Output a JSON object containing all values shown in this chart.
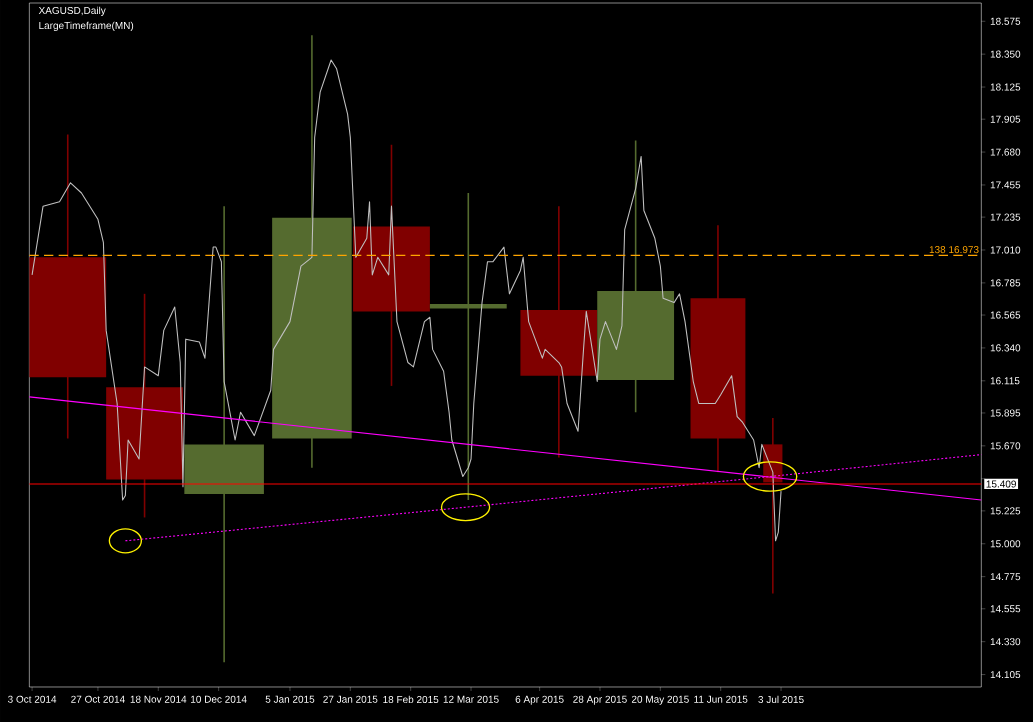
{
  "chart_data": {
    "type": "candlestick",
    "title": "XAGUSD,Daily",
    "subtitle": "LargeTimeframe(MN)",
    "xlim": [
      "2014-10-02",
      "2015-09-14"
    ],
    "ylim": [
      14.02,
      18.7
    ],
    "xticks": [
      {
        "value": "2014-10-03",
        "label": "3 Oct 2014"
      },
      {
        "value": "2014-10-27",
        "label": "27 Oct 2014"
      },
      {
        "value": "2014-11-18",
        "label": "18 Nov 2014"
      },
      {
        "value": "2014-12-10",
        "label": "10 Dec 2014"
      },
      {
        "value": "2015-01-05",
        "label": "5 Jan 2015"
      },
      {
        "value": "2015-01-27",
        "label": "27 Jan 2015"
      },
      {
        "value": "2015-02-18",
        "label": "18 Feb 2015"
      },
      {
        "value": "2015-03-12",
        "label": "12 Mar 2015"
      },
      {
        "value": "2015-04-06",
        "label": "6 Apr 2015"
      },
      {
        "value": "2015-04-28",
        "label": "28 Apr 2015"
      },
      {
        "value": "2015-05-20",
        "label": "20 May 2015"
      },
      {
        "value": "2015-06-11",
        "label": "11 Jun 2015"
      },
      {
        "value": "2015-07-03",
        "label": "3 Jul 2015"
      }
    ],
    "yticks": [
      {
        "value": 14.105,
        "label": "14.105"
      },
      {
        "value": 14.33,
        "label": "14.330"
      },
      {
        "value": 14.555,
        "label": "14.555"
      },
      {
        "value": 14.775,
        "label": "14.775"
      },
      {
        "value": 15.0,
        "label": "15.000"
      },
      {
        "value": 15.225,
        "label": "15.225"
      },
      {
        "value": 15.445,
        "label": null
      },
      {
        "value": 15.67,
        "label": "15.670"
      },
      {
        "value": 15.895,
        "label": "15.895"
      },
      {
        "value": 16.115,
        "label": "16.115"
      },
      {
        "value": 16.34,
        "label": "16.340"
      },
      {
        "value": 16.565,
        "label": "16.565"
      },
      {
        "value": 16.785,
        "label": "16.785"
      },
      {
        "value": 17.01,
        "label": "17.010"
      },
      {
        "value": 17.235,
        "label": "17.235"
      },
      {
        "value": 17.455,
        "label": "17.455"
      },
      {
        "value": 17.68,
        "label": "17.680"
      },
      {
        "value": 17.905,
        "label": "17.905"
      },
      {
        "value": 18.125,
        "label": "18.125"
      },
      {
        "value": 18.35,
        "label": "18.350"
      },
      {
        "value": 18.575,
        "label": "18.575"
      }
    ],
    "ref_lines": [
      {
        "axis": "y",
        "value": 16.973,
        "label": "138  16.973",
        "color": "#ffa500",
        "line_style": "dashed"
      },
      {
        "axis": "y",
        "value": 15.409,
        "label": "15.409",
        "color": "#ff0000",
        "line_style": "solid"
      }
    ],
    "series": [
      {
        "type": "candlestick",
        "x": [
          "2014-10-16",
          "2014-11-13",
          "2014-12-12",
          "2015-01-13",
          "2015-02-11",
          "2015-03-11",
          "2015-04-13",
          "2015-05-11",
          "2015-06-10",
          "2015-06-30"
        ],
        "ohlc": [
          [
            16.96,
            17.8,
            15.72,
            16.14
          ],
          [
            16.07,
            16.71,
            15.18,
            15.44
          ],
          [
            15.34,
            17.31,
            14.19,
            15.68
          ],
          [
            15.72,
            18.48,
            15.52,
            17.23
          ],
          [
            17.17,
            17.73,
            16.08,
            16.59
          ],
          [
            16.61,
            17.4,
            15.3,
            16.64
          ],
          [
            16.6,
            17.31,
            15.59,
            16.15
          ],
          [
            16.12,
            17.76,
            15.9,
            16.73
          ],
          [
            16.68,
            17.18,
            15.49,
            15.72
          ],
          [
            15.68,
            15.86,
            14.66,
            15.42
          ]
        ],
        "colors": [
          "#800000",
          "#800000",
          "#556b2f",
          "#556b2f",
          "#800000",
          "#556b2f",
          "#800000",
          "#556b2f",
          "#800000",
          "#800000"
        ]
      },
      {
        "type": "line",
        "color": "#c0c0c0",
        "x": [
          "2014-10-03",
          "2014-10-07",
          "2014-10-13",
          "2014-10-17",
          "2014-10-21",
          "2014-10-27",
          "2014-10-29",
          "2014-10-30",
          "2014-11-03",
          "2014-11-05",
          "2014-11-06",
          "2014-11-07",
          "2014-11-11",
          "2014-11-13",
          "2014-11-18",
          "2014-11-20",
          "2014-11-24",
          "2014-11-26",
          "2014-11-27",
          "2014-11-28",
          "2014-12-03",
          "2014-12-05",
          "2014-12-08",
          "2014-12-09",
          "2014-12-11",
          "2014-12-12",
          "2014-12-16",
          "2014-12-18",
          "2014-12-23",
          "2014-12-29",
          "2014-12-30",
          "2015-01-05",
          "2015-01-09",
          "2015-01-13",
          "2015-01-14",
          "2015-01-16",
          "2015-01-20",
          "2015-01-22",
          "2015-01-26",
          "2015-01-27",
          "2015-01-29",
          "2015-02-02",
          "2015-02-03",
          "2015-02-04",
          "2015-02-06",
          "2015-02-10",
          "2015-02-11",
          "2015-02-13",
          "2015-02-17",
          "2015-02-19",
          "2015-02-23",
          "2015-02-25",
          "2015-02-26",
          "2015-03-02",
          "2015-03-04",
          "2015-03-05",
          "2015-03-09",
          "2015-03-11",
          "2015-03-12",
          "2015-03-13",
          "2015-03-16",
          "2015-03-18",
          "2015-03-20",
          "2015-03-24",
          "2015-03-26",
          "2015-03-30",
          "2015-03-31",
          "2015-04-02",
          "2015-04-07",
          "2015-04-08",
          "2015-04-13",
          "2015-04-14",
          "2015-04-16",
          "2015-04-20",
          "2015-04-22",
          "2015-04-23",
          "2015-04-27",
          "2015-04-28",
          "2015-04-30",
          "2015-05-04",
          "2015-05-06",
          "2015-05-07",
          "2015-05-11",
          "2015-05-13",
          "2015-05-14",
          "2015-05-18",
          "2015-05-20",
          "2015-05-21",
          "2015-05-25",
          "2015-05-27",
          "2015-05-29",
          "2015-06-01",
          "2015-06-03",
          "2015-06-05",
          "2015-06-09",
          "2015-06-11",
          "2015-06-15",
          "2015-06-17",
          "2015-06-19",
          "2015-06-23",
          "2015-06-25",
          "2015-06-26",
          "2015-06-30",
          "2015-07-01",
          "2015-07-02",
          "2015-07-03"
        ],
        "values": [
          16.84,
          17.31,
          17.34,
          17.47,
          17.4,
          17.22,
          17.06,
          16.46,
          15.96,
          15.3,
          15.33,
          15.71,
          15.58,
          16.21,
          16.15,
          16.46,
          16.62,
          16.24,
          15.39,
          16.4,
          16.38,
          16.27,
          17.03,
          17.03,
          16.93,
          16.11,
          15.71,
          15.9,
          15.74,
          16.05,
          16.33,
          16.52,
          16.9,
          16.96,
          17.78,
          18.09,
          18.31,
          18.25,
          17.94,
          17.78,
          16.96,
          17.09,
          17.34,
          16.84,
          16.96,
          16.84,
          17.31,
          16.52,
          16.24,
          16.21,
          16.52,
          16.55,
          16.33,
          16.18,
          15.9,
          15.71,
          15.46,
          15.52,
          15.58,
          15.96,
          16.65,
          16.93,
          16.93,
          17.03,
          16.71,
          16.87,
          16.96,
          16.52,
          16.27,
          16.33,
          16.24,
          16.21,
          15.96,
          15.77,
          16.33,
          16.59,
          16.11,
          16.4,
          16.52,
          16.33,
          16.49,
          17.15,
          17.43,
          17.65,
          17.28,
          17.09,
          16.9,
          16.68,
          16.65,
          16.71,
          16.52,
          16.11,
          15.96,
          15.96,
          15.96,
          16.02,
          16.15,
          15.87,
          15.83,
          15.71,
          15.52,
          15.68,
          15.49,
          15.02,
          15.08,
          15.36
        ]
      },
      {
        "type": "line",
        "color": "#ff00ff",
        "line_style": "solid",
        "x": [
          "2014-10-02",
          "2015-09-14"
        ],
        "values": [
          16.005,
          15.3
        ]
      },
      {
        "type": "line",
        "color": "#ff00ff",
        "line_style": "dotted",
        "x": [
          "2014-11-06",
          "2015-03-10",
          "2015-06-29",
          "2015-09-14"
        ],
        "values": [
          15.02,
          15.25,
          15.46,
          15.61
        ]
      }
    ]
  }
}
